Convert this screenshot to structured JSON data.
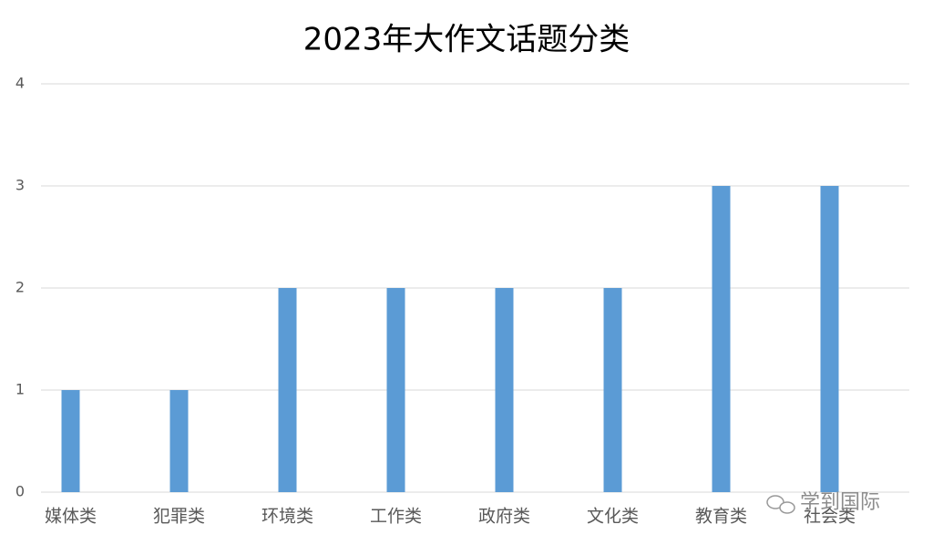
{
  "chart_data": {
    "type": "bar",
    "title": "2023年大作文话题分类",
    "categories": [
      "媒体类",
      "犯罪类",
      "环境类",
      "工作类",
      "政府类",
      "文化类",
      "教育类",
      "社会类"
    ],
    "values": [
      1,
      1,
      2,
      2,
      2,
      2,
      3,
      3
    ],
    "color": "#5b9bd5",
    "ylim": [
      0,
      4
    ],
    "yticks": [
      0,
      1,
      2,
      3,
      4
    ],
    "grid": true,
    "watermark": "学到国际"
  }
}
